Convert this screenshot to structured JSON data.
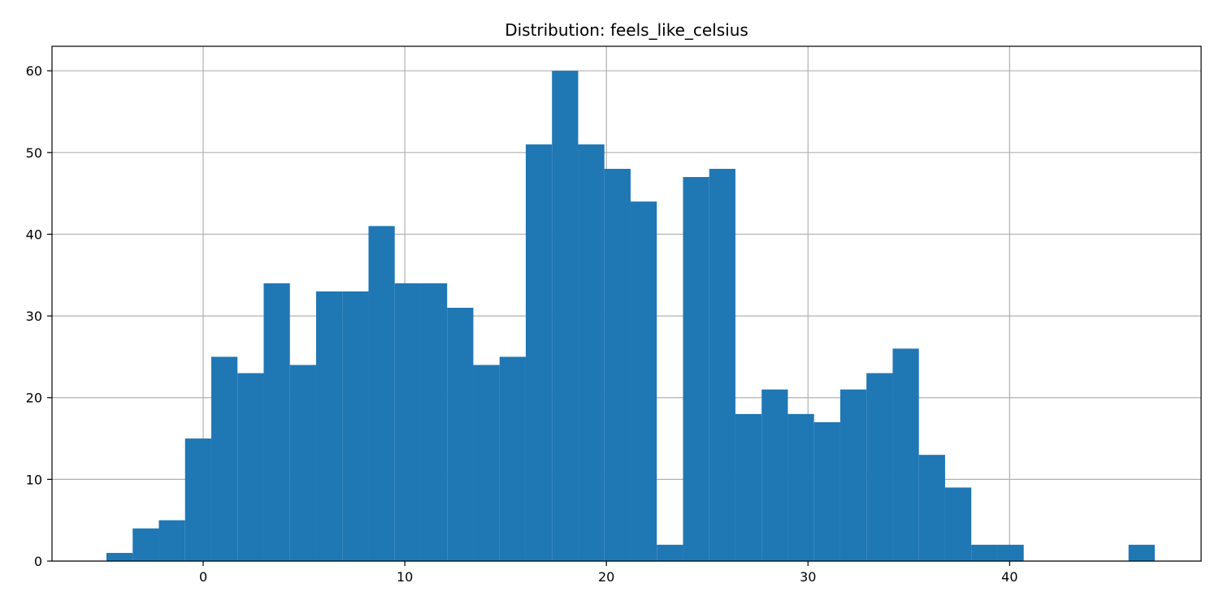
{
  "chart_data": {
    "type": "bar",
    "title": "Distribution: feels_like_celsius",
    "xlabel": "",
    "ylabel": "",
    "xlim": [
      -7.5,
      49.5
    ],
    "ylim": [
      0,
      63
    ],
    "grid": true,
    "bar_color": "#1f77b4",
    "xticks": [
      0,
      10,
      20,
      30,
      40
    ],
    "yticks": [
      0,
      10,
      20,
      30,
      40,
      50,
      60
    ],
    "bins": [
      {
        "x0": -4.8,
        "x1": -3.5,
        "count": 1
      },
      {
        "x0": -3.5,
        "x1": -2.2,
        "count": 4
      },
      {
        "x0": -2.2,
        "x1": -0.9,
        "count": 5
      },
      {
        "x0": -0.9,
        "x1": 0.4,
        "count": 15
      },
      {
        "x0": 0.4,
        "x1": 1.7,
        "count": 25
      },
      {
        "x0": 1.7,
        "x1": 3.0,
        "count": 23
      },
      {
        "x0": 3.0,
        "x1": 4.3,
        "count": 34
      },
      {
        "x0": 4.3,
        "x1": 5.6,
        "count": 24
      },
      {
        "x0": 5.6,
        "x1": 6.9,
        "count": 33
      },
      {
        "x0": 6.9,
        "x1": 8.2,
        "count": 33
      },
      {
        "x0": 8.2,
        "x1": 9.5,
        "count": 41
      },
      {
        "x0": 9.5,
        "x1": 10.8,
        "count": 34
      },
      {
        "x0": 10.8,
        "x1": 12.1,
        "count": 34
      },
      {
        "x0": 12.1,
        "x1": 13.4,
        "count": 31
      },
      {
        "x0": 13.4,
        "x1": 14.7,
        "count": 24
      },
      {
        "x0": 14.7,
        "x1": 16.0,
        "count": 25
      },
      {
        "x0": 16.0,
        "x1": 17.3,
        "count": 51
      },
      {
        "x0": 17.3,
        "x1": 18.6,
        "count": 60
      },
      {
        "x0": 18.6,
        "x1": 19.9,
        "count": 51
      },
      {
        "x0": 19.9,
        "x1": 21.2,
        "count": 48
      },
      {
        "x0": 21.2,
        "x1": 22.5,
        "count": 44
      },
      {
        "x0": 22.5,
        "x1": 23.8,
        "count": 2
      },
      {
        "x0": 23.8,
        "x1": 25.1,
        "count": 47
      },
      {
        "x0": 25.1,
        "x1": 26.4,
        "count": 48
      },
      {
        "x0": 26.4,
        "x1": 27.7,
        "count": 18
      },
      {
        "x0": 27.7,
        "x1": 29.0,
        "count": 21
      },
      {
        "x0": 29.0,
        "x1": 30.3,
        "count": 18
      },
      {
        "x0": 30.3,
        "x1": 31.6,
        "count": 17
      },
      {
        "x0": 31.6,
        "x1": 32.9,
        "count": 21
      },
      {
        "x0": 32.9,
        "x1": 34.2,
        "count": 23
      },
      {
        "x0": 34.2,
        "x1": 35.5,
        "count": 26
      },
      {
        "x0": 35.5,
        "x1": 36.8,
        "count": 13
      },
      {
        "x0": 36.8,
        "x1": 38.1,
        "count": 9
      },
      {
        "x0": 38.1,
        "x1": 39.4,
        "count": 2
      },
      {
        "x0": 39.4,
        "x1": 40.7,
        "count": 2
      },
      {
        "x0": 40.7,
        "x1": 42.0,
        "count": 0
      },
      {
        "x0": 42.0,
        "x1": 43.3,
        "count": 0
      },
      {
        "x0": 43.3,
        "x1": 44.6,
        "count": 0
      },
      {
        "x0": 44.6,
        "x1": 45.9,
        "count": 0
      },
      {
        "x0": 45.9,
        "x1": 47.2,
        "count": 2
      }
    ]
  }
}
